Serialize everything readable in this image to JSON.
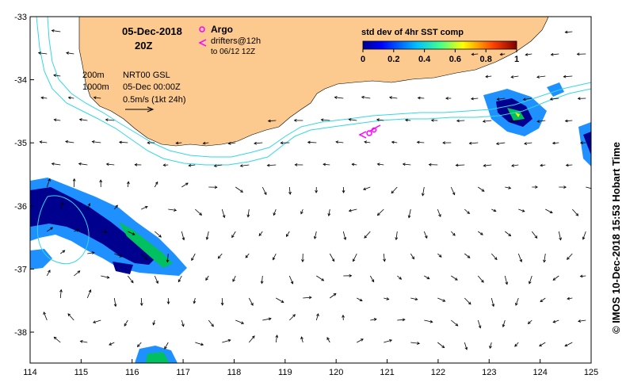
{
  "map": {
    "date_label": "05-Dec-2018",
    "time_label": "20Z",
    "legend_argo": "Argo",
    "legend_drifters_1": "drifters@12h",
    "legend_drifters_2": "to 06/12 12Z",
    "contour_200": "200m",
    "contour_1000": "1000m",
    "product": "NRT00 GSL",
    "product_date": "05-Dec 00:00Z",
    "scale_label": "0.5m/s (1kt 24h)",
    "colorbar_title": "std dev of 4hr SST comp",
    "colorbar_ticks": [
      "0",
      "0.2",
      "0.4",
      "0.6",
      "0.8",
      "1"
    ],
    "credit": "© IMOS 10-Dec-2018 15:53 Hobart Time",
    "lon_ticks": [
      "114",
      "115",
      "116",
      "117",
      "118",
      "119",
      "120",
      "121",
      "122",
      "123",
      "124",
      "125"
    ],
    "lat_ticks": [
      "-33",
      "-34",
      "-35",
      "-36",
      "-37",
      "-38"
    ],
    "colors": {
      "land": "#fcc98f",
      "isobath": "#33d7e6",
      "argo": "#ff00ff",
      "sst_low": "#00008f",
      "sst_mid": "#1e90ff",
      "sst_high": "#00c060"
    }
  }
}
